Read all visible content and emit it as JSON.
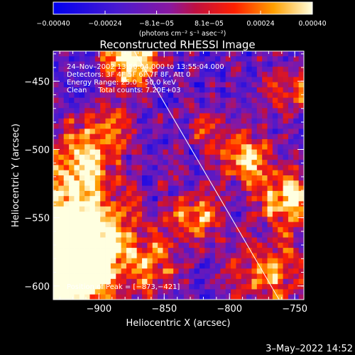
{
  "chart_data": {
    "type": "heatmap",
    "title": "Reconstructed RHESSI Image",
    "xlabel": "Heliocentric X (arcsec)",
    "ylabel": "Heliocentric Y (arcsec)",
    "xlim": [
      -935,
      -743
    ],
    "ylim": [
      -610,
      -428
    ],
    "xticks": [
      -900,
      -850,
      -800,
      -750
    ],
    "xtick_labels": [
      "−900",
      "−850",
      "−800",
      "−750"
    ],
    "yticks": [
      -450,
      -500,
      -550,
      -600
    ],
    "ytick_labels": [
      "−450",
      "−500",
      "−550",
      "−600"
    ],
    "colorbar": {
      "min": -0.0004,
      "max": 0.0004,
      "ticks": [
        -0.0004,
        -0.00024,
        -8.1e-05,
        8.1e-05,
        0.00024,
        0.0004
      ],
      "tick_labels": [
        "−0.00040",
        "−0.00024",
        "−8.1e−05",
        "8.1e−05",
        "0.00024",
        "0.00040"
      ],
      "units": "(photons cm⁻² s⁻¹ asec⁻²)"
    },
    "annotations": {
      "time_range": "24–Nov–2002 13:50:04.000 to 13:55:04.000",
      "detectors": "Detectors: 3F 4F 5F 6F 7F 8F, Att 0",
      "energy_range": "Energy Range: 25.0 – 50.0 keV",
      "method": "Clean     Total counts: 7.20E+03",
      "peak": "Position of Peak = [−873,−421]"
    },
    "limb_line": {
      "x": [
        -873,
        -762
      ],
      "y": [
        -428,
        -610
      ]
    },
    "peak_position": [
      -873,
      -421
    ],
    "grid": false
  },
  "footer": {
    "date": "3–May–2022 14:52"
  },
  "colors": {
    "background": "#000000",
    "foreground": "#ffffff"
  }
}
